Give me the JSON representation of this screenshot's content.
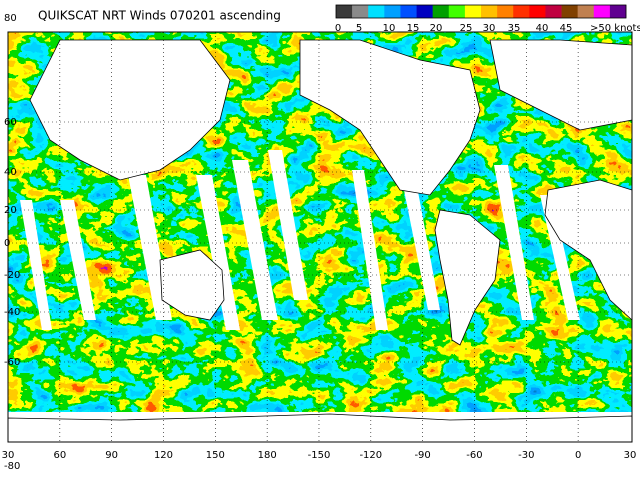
{
  "title": "QUIKSCAT NRT Winds 070201 ascending",
  "colorbar": {
    "ticks": [
      0,
      5,
      10,
      15,
      20,
      25,
      30,
      35,
      40,
      45,
      ">50 knots"
    ],
    "colors": [
      "#3a3a3a",
      "#8a8a8a",
      "#00e0ff",
      "#00a0ff",
      "#0050ff",
      "#0000c0",
      "#00a000",
      "#40ff00",
      "#ffff00",
      "#ffc000",
      "#ff8000",
      "#ff3000",
      "#ff0000",
      "#c00040",
      "#804000",
      "#c08050",
      "#ff00ff",
      "#600090"
    ]
  },
  "longitude_labels": [
    30,
    60,
    90,
    120,
    150,
    180,
    -150,
    -120,
    -90,
    -60,
    -30,
    0,
    30
  ],
  "latitude_labels": [
    80,
    60,
    40,
    20,
    0,
    -20,
    -40,
    -60,
    -80
  ]
}
